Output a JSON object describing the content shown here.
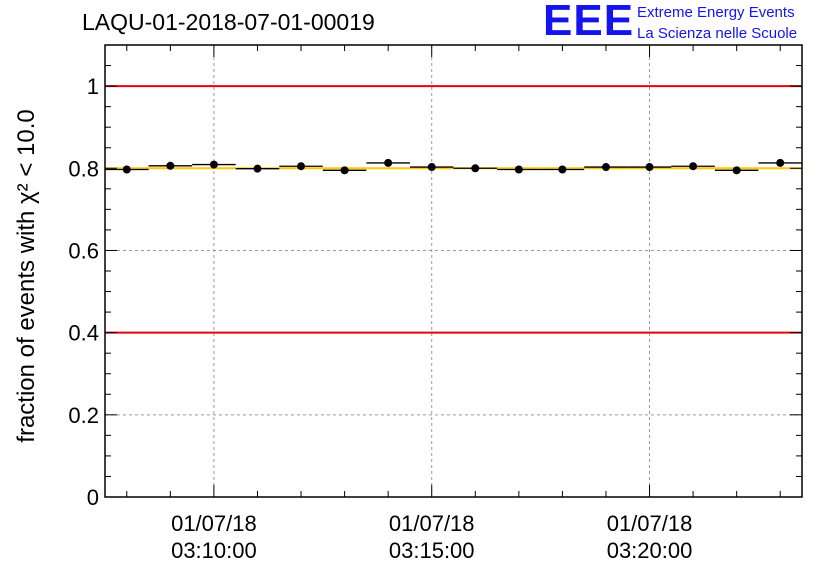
{
  "title": "LAQU-01-2018-07-01-00019",
  "logo": {
    "mark": "EEE",
    "line1": "Extreme Energy Events",
    "line2": "La Scienza nelle Scuole",
    "color": "#1414ee"
  },
  "chart_data": {
    "type": "scatter",
    "ylabel": "fraction of events with χ² < 10.0",
    "ylim": [
      0,
      1.1
    ],
    "y_ticks": [
      0,
      0.2,
      0.4,
      0.6,
      0.8,
      1
    ],
    "y_tick_labels": [
      "0",
      "0.2",
      "0.4",
      "0.6",
      "0.8",
      "1"
    ],
    "xlim_minutes": [
      7.5,
      23.5
    ],
    "x_ticks_minutes": [
      10,
      15,
      20
    ],
    "x_tick_labels": [
      {
        "date": "01/07/18",
        "time": "03:10:00"
      },
      {
        "date": "01/07/18",
        "time": "03:15:00"
      },
      {
        "date": "01/07/18",
        "time": "03:20:00"
      }
    ],
    "grid": true,
    "bin_width_minutes": 1,
    "series": [
      {
        "name": "fraction",
        "x_minutes": [
          8,
          9,
          10,
          11,
          12,
          13,
          14,
          15,
          16,
          17,
          18,
          19,
          20,
          21,
          22,
          23
        ],
        "values": [
          0.797,
          0.806,
          0.809,
          0.799,
          0.805,
          0.795,
          0.813,
          0.803,
          0.8,
          0.797,
          0.797,
          0.803,
          0.803,
          0.805,
          0.795,
          0.813
        ],
        "color": "#000000"
      }
    ],
    "reference_lines": [
      {
        "name": "upper-limit",
        "y": 1.0,
        "color": "#e8000b"
      },
      {
        "name": "lower-limit",
        "y": 0.4,
        "color": "#e8000b"
      },
      {
        "name": "mean",
        "y": 0.8,
        "color": "#ffc800"
      }
    ]
  }
}
